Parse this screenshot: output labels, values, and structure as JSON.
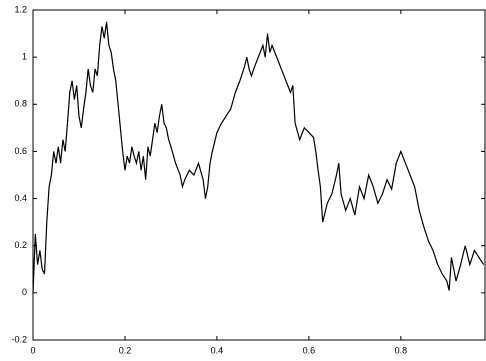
{
  "chart_data": {
    "type": "line",
    "x": [
      0,
      0.005,
      0.01,
      0.015,
      0.02,
      0.025,
      0.03,
      0.035,
      0.04,
      0.045,
      0.05,
      0.055,
      0.06,
      0.065,
      0.07,
      0.075,
      0.08,
      0.085,
      0.09,
      0.095,
      0.1,
      0.105,
      0.11,
      0.115,
      0.12,
      0.125,
      0.13,
      0.135,
      0.14,
      0.145,
      0.15,
      0.155,
      0.16,
      0.165,
      0.17,
      0.175,
      0.18,
      0.185,
      0.19,
      0.195,
      0.2,
      0.205,
      0.21,
      0.215,
      0.22,
      0.225,
      0.23,
      0.235,
      0.24,
      0.245,
      0.25,
      0.255,
      0.26,
      0.265,
      0.27,
      0.275,
      0.28,
      0.285,
      0.29,
      0.295,
      0.3,
      0.31,
      0.32,
      0.325,
      0.33,
      0.34,
      0.35,
      0.36,
      0.37,
      0.375,
      0.38,
      0.385,
      0.39,
      0.4,
      0.41,
      0.42,
      0.43,
      0.44,
      0.45,
      0.46,
      0.465,
      0.47,
      0.475,
      0.48,
      0.49,
      0.5,
      0.505,
      0.51,
      0.515,
      0.52,
      0.53,
      0.54,
      0.55,
      0.56,
      0.565,
      0.57,
      0.58,
      0.59,
      0.6,
      0.61,
      0.615,
      0.62,
      0.625,
      0.63,
      0.64,
      0.65,
      0.66,
      0.665,
      0.67,
      0.68,
      0.69,
      0.7,
      0.71,
      0.72,
      0.73,
      0.74,
      0.75,
      0.76,
      0.77,
      0.78,
      0.79,
      0.8,
      0.81,
      0.82,
      0.83,
      0.835,
      0.84,
      0.85,
      0.86,
      0.87,
      0.88,
      0.89,
      0.9,
      0.905,
      0.91,
      0.92,
      0.93,
      0.94,
      0.95,
      0.96,
      0.97,
      0.98
    ],
    "series": [
      {
        "color": "#000000",
        "values": [
          0,
          0.25,
          0.12,
          0.18,
          0.1,
          0.08,
          0.3,
          0.45,
          0.5,
          0.6,
          0.55,
          0.62,
          0.55,
          0.65,
          0.6,
          0.72,
          0.85,
          0.9,
          0.82,
          0.88,
          0.75,
          0.7,
          0.78,
          0.85,
          0.95,
          0.88,
          0.85,
          0.95,
          0.92,
          1.05,
          1.13,
          1.08,
          1.15,
          1.05,
          1.02,
          0.95,
          0.9,
          0.8,
          0.7,
          0.6,
          0.52,
          0.58,
          0.55,
          0.62,
          0.58,
          0.55,
          0.6,
          0.52,
          0.58,
          0.48,
          0.62,
          0.58,
          0.65,
          0.72,
          0.68,
          0.75,
          0.8,
          0.72,
          0.7,
          0.65,
          0.62,
          0.55,
          0.5,
          0.45,
          0.48,
          0.52,
          0.5,
          0.55,
          0.48,
          0.4,
          0.45,
          0.55,
          0.6,
          0.68,
          0.72,
          0.75,
          0.78,
          0.85,
          0.9,
          0.96,
          1.0,
          0.95,
          0.92,
          0.95,
          1.0,
          1.05,
          1.0,
          1.1,
          1.02,
          1.05,
          1.0,
          0.95,
          0.9,
          0.85,
          0.88,
          0.72,
          0.65,
          0.7,
          0.68,
          0.66,
          0.6,
          0.52,
          0.45,
          0.3,
          0.38,
          0.42,
          0.5,
          0.55,
          0.42,
          0.35,
          0.4,
          0.33,
          0.45,
          0.4,
          0.5,
          0.45,
          0.38,
          0.42,
          0.48,
          0.44,
          0.55,
          0.6,
          0.55,
          0.5,
          0.45,
          0.4,
          0.35,
          0.28,
          0.22,
          0.18,
          0.12,
          0.08,
          0.05,
          0.01,
          0.15,
          0.05,
          0.12,
          0.2,
          0.12,
          0.18,
          0.15,
          0.12
        ]
      }
    ],
    "xlim": [
      0,
      0.983
    ],
    "ylim": [
      -0.2,
      1.2
    ],
    "xticks": [
      0,
      0.2,
      0.4,
      0.6,
      0.8
    ],
    "yticks": [
      -0.2,
      0,
      0.2,
      0.4,
      0.6,
      0.8,
      1,
      1.2
    ]
  }
}
